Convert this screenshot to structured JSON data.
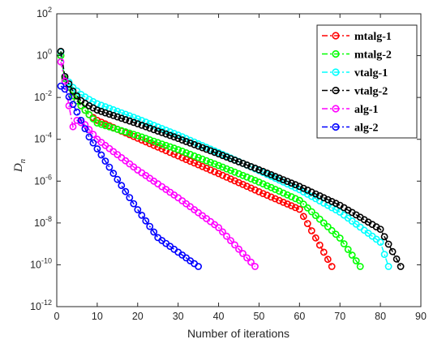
{
  "chart_data": {
    "type": "line",
    "title": "",
    "xlabel": "Number of iterations",
    "ylabel": "D",
    "ylabel_subscript": "n",
    "xlim": [
      0,
      90
    ],
    "ylim_exponents": [
      -12,
      2
    ],
    "yscale": "log",
    "x_ticks": [
      "0",
      "10",
      "20",
      "30",
      "40",
      "50",
      "60",
      "70",
      "80",
      "90"
    ],
    "y_tick_base": "10",
    "y_tick_exponents": [
      "2",
      "0",
      "-2",
      "-4",
      "-6",
      "-8",
      "-10",
      "-12"
    ],
    "legend_position": "top-right",
    "grid": false,
    "series": [
      {
        "name": "mtalg-1",
        "color": "#ff0000",
        "x_max": 68,
        "marker": "circle",
        "line": "dash-dot",
        "points": [
          [
            1,
            1.0
          ],
          [
            2,
            0.08
          ],
          [
            4,
            0.012
          ],
          [
            6,
            0.004
          ],
          [
            8,
            0.0015
          ],
          [
            10,
            0.0008
          ],
          [
            20,
            0.000112
          ],
          [
            30,
            1.6e-05
          ],
          [
            40,
            2.3e-06
          ],
          [
            50,
            3.1e-07
          ],
          [
            60,
            4.5e-08
          ],
          [
            68,
            8.3e-11
          ]
        ]
      },
      {
        "name": "mtalg-2",
        "color": "#00ff00",
        "x_max": 75,
        "marker": "circle",
        "line": "dash-dot",
        "points": [
          [
            1,
            1.0
          ],
          [
            2,
            0.08
          ],
          [
            4,
            0.012
          ],
          [
            6,
            0.004
          ],
          [
            8,
            0.0015
          ],
          [
            10,
            0.0006
          ],
          [
            20,
            0.00015
          ],
          [
            30,
            3.2e-05
          ],
          [
            40,
            5.6e-06
          ],
          [
            50,
            9e-07
          ],
          [
            60,
            1.2e-07
          ],
          [
            70,
            1.9e-09
          ],
          [
            75,
            8.3e-11
          ]
        ]
      },
      {
        "name": "vtalg-1",
        "color": "#00ffff",
        "x_max": 82,
        "marker": "circle",
        "line": "dash-dot",
        "points": [
          [
            1,
            1.5
          ],
          [
            2,
            0.1
          ],
          [
            4,
            0.03
          ],
          [
            6,
            0.014
          ],
          [
            8,
            0.008
          ],
          [
            10,
            0.005
          ],
          [
            20,
            0.00095
          ],
          [
            30,
            0.00016
          ],
          [
            40,
            2.3e-05
          ],
          [
            50,
            3.2e-06
          ],
          [
            60,
            3.9e-07
          ],
          [
            70,
            3.3e-08
          ],
          [
            80,
            1.2e-09
          ],
          [
            82,
            8.3e-11
          ]
        ]
      },
      {
        "name": "vtalg-2",
        "color": "#000000",
        "x_max": 85,
        "marker": "circle",
        "line": "dash-dot",
        "points": [
          [
            1,
            1.6
          ],
          [
            2,
            0.1
          ],
          [
            4,
            0.02
          ],
          [
            6,
            0.007
          ],
          [
            8,
            0.004
          ],
          [
            10,
            0.0025
          ],
          [
            20,
            0.00055
          ],
          [
            30,
            0.00011
          ],
          [
            40,
            2e-05
          ],
          [
            50,
            3.5e-06
          ],
          [
            60,
            5.6e-07
          ],
          [
            70,
            7e-08
          ],
          [
            80,
            5e-09
          ],
          [
            85,
            8.3e-11
          ]
        ]
      },
      {
        "name": "alg-1",
        "color": "#ff00ff",
        "x_max": 49,
        "marker": "circle",
        "line": "dash-dot",
        "points": [
          [
            1,
            0.5
          ],
          [
            2,
            0.06
          ],
          [
            3,
            0.004
          ],
          [
            4,
            0.0004
          ],
          [
            5,
            0.0008
          ],
          [
            7,
            0.0005
          ],
          [
            10,
            0.0001
          ],
          [
            20,
            3.4e-06
          ],
          [
            30,
            1.6e-07
          ],
          [
            40,
            6e-09
          ],
          [
            49,
            8.3e-11
          ]
        ]
      },
      {
        "name": "alg-2",
        "color": "#0000ff",
        "x_max": 35,
        "marker": "circle",
        "line": "dash-dot",
        "points": [
          [
            1,
            0.035
          ],
          [
            2,
            0.025
          ],
          [
            5,
            0.002
          ],
          [
            8,
            0.00013
          ],
          [
            10,
            3.5e-05
          ],
          [
            15,
            1.2e-06
          ],
          [
            20,
            4.3e-08
          ],
          [
            25,
            2e-09
          ],
          [
            30,
            4e-10
          ],
          [
            35,
            8.3e-11
          ]
        ]
      }
    ]
  }
}
